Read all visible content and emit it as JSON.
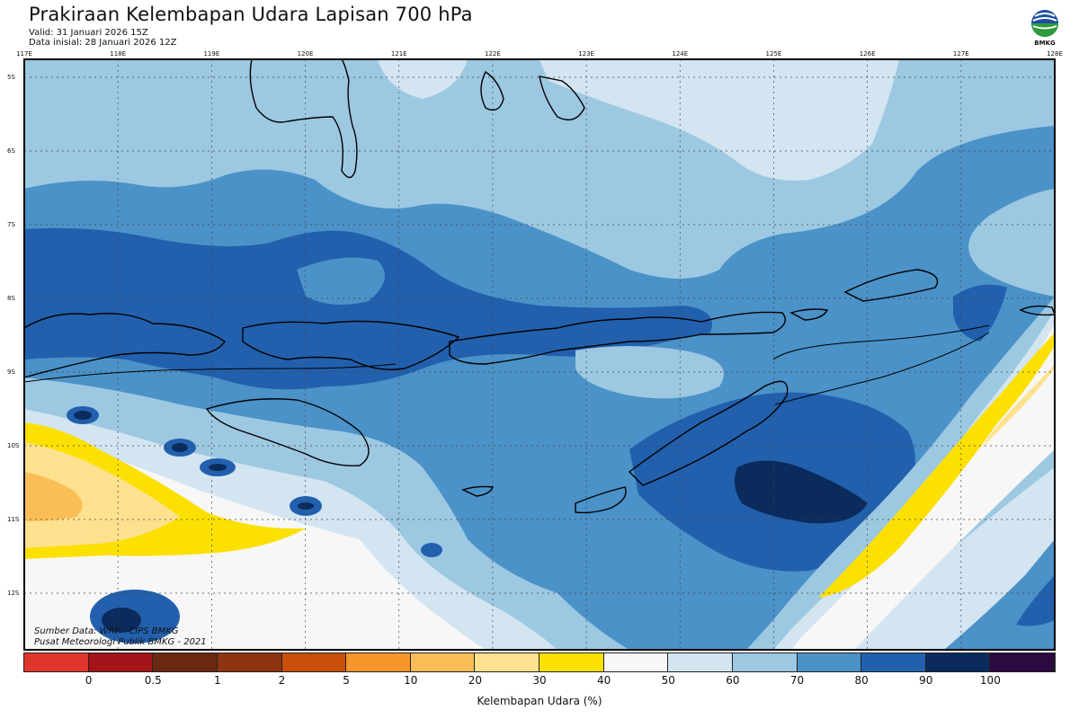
{
  "header": {
    "title": "Prakiraan Kelembapan Udara Lapisan 700 hPa",
    "valid": "Valid: 31 Januari 2026 15Z",
    "init": "Data inisial: 28 Januari 2026 12Z"
  },
  "logo": {
    "label": "BMKG",
    "icon": "bmkg-logo-icon"
  },
  "map": {
    "lon_ticks": [
      "117E",
      "118E",
      "119E",
      "120E",
      "121E",
      "122E",
      "123E",
      "124E",
      "125E",
      "126E",
      "127E",
      "128E"
    ],
    "lat_ticks": [
      "5S",
      "6S",
      "7S",
      "8S",
      "9S",
      "10S",
      "11S",
      "12S"
    ],
    "source_line1": "Sumber Data: WRF - CIPS BMKG",
    "source_line2": "Pusat Meteorologi Publik BMKG - 2021"
  },
  "legend": {
    "labels": [
      "0",
      "0.5",
      "1",
      "2",
      "5",
      "10",
      "20",
      "30",
      "40",
      "50",
      "60",
      "70",
      "80",
      "90",
      "100"
    ],
    "colors": [
      "#e0352b",
      "#a31518",
      "#6b2a0f",
      "#8e3410",
      "#c8500a",
      "#f7962a",
      "#fbbd56",
      "#fde18e",
      "#fce000",
      "#f7f7f7",
      "#d3e5f0",
      "#9dc8e2",
      "#4b92c8",
      "#2260ad",
      "#0a2b5c",
      "#2a0a40"
    ],
    "title": "Kelembapan Udara (%)"
  },
  "palette": {
    "band_50_60": "#f7f7f7",
    "band_60_70": "#d3e5f0",
    "band_70_80": "#9dc8e2",
    "band_80_90": "#4b92c8",
    "band_90_100": "#2260ad",
    "band_100": "#0a2b5c",
    "band_30_40": "#fce000",
    "band_20_30": "#fde18e",
    "band_10_20": "#fbbd56",
    "coast": "#000000"
  }
}
